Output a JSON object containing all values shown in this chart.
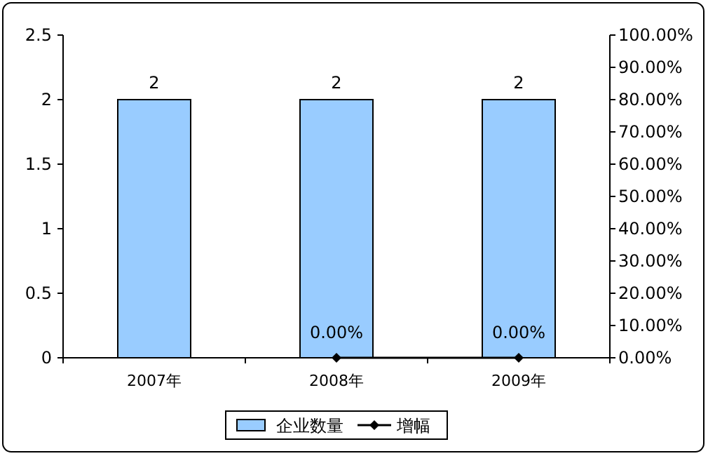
{
  "chart_data": {
    "type": "bar",
    "categories": [
      "2007年",
      "2008年",
      "2009年"
    ],
    "series": [
      {
        "name": "企业数量",
        "color": "#99ccff",
        "values": [
          2,
          2,
          2
        ],
        "value_labels": [
          "2",
          "2",
          "2"
        ]
      },
      {
        "name": "增幅",
        "type": "line",
        "axis": "y2",
        "color": "#000000",
        "marker": "diamond",
        "values": [
          null,
          0,
          0
        ],
        "value_labels": [
          null,
          "0.00%",
          "0.00%"
        ]
      }
    ],
    "ylim": [
      0,
      2.5
    ],
    "yticks": [
      0,
      0.5,
      1,
      1.5,
      2,
      2.5
    ],
    "y2lim": [
      0,
      100
    ],
    "y2ticks": [
      {
        "value": 0,
        "label": "0.00%"
      },
      {
        "value": 10,
        "label": "10.00%"
      },
      {
        "value": 20,
        "label": "20.00%"
      },
      {
        "value": 30,
        "label": "30.00%"
      },
      {
        "value": 40,
        "label": "40.00%"
      },
      {
        "value": 50,
        "label": "50.00%"
      },
      {
        "value": 60,
        "label": "60.00%"
      },
      {
        "value": 70,
        "label": "70.00%"
      },
      {
        "value": 80,
        "label": "80.00%"
      },
      {
        "value": 90,
        "label": "90.00%"
      },
      {
        "value": 100,
        "label": "100.00%"
      }
    ],
    "grid": false,
    "legend": "bottom"
  }
}
